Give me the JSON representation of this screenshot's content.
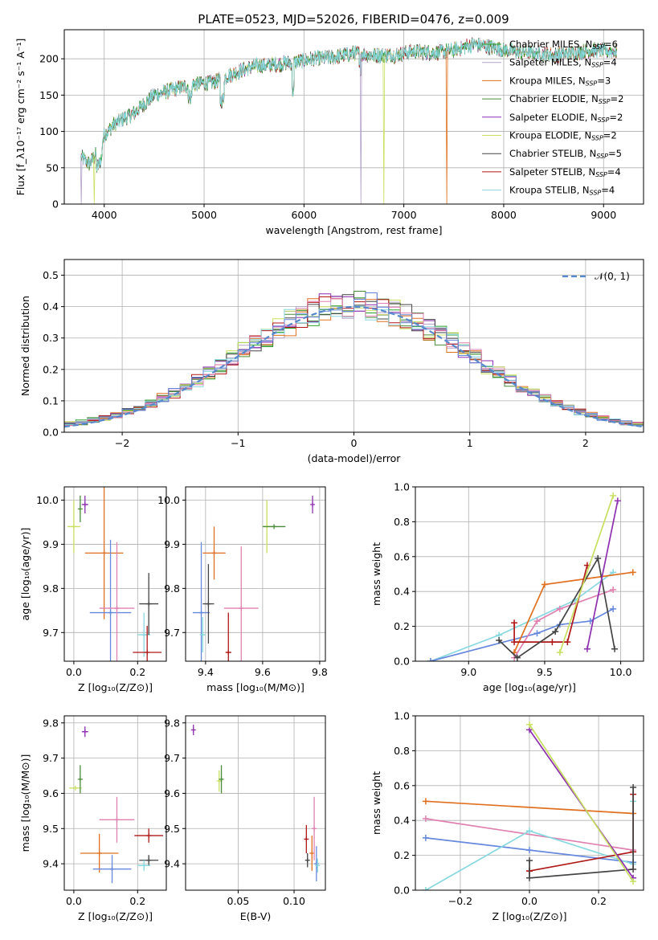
{
  "figure_title": "PLATE=0523, MJD=52026, FIBERID=0476, z=0.009",
  "colors": {
    "chabrier_miles": "#2ca02c",
    "salpeter_miles": "#b0a0c8",
    "kroupa_miles": "#e07020",
    "chabrier_elodie": "#4a8c3a",
    "salpeter_elodie": "#8e2fb0",
    "kroupa_elodie": "#c8e060",
    "chabrier_stelib": "#444444",
    "salpeter_stelib": "#b01818",
    "kroupa_stelib": "#88d8e0",
    "pink": "#e080b0",
    "blue": "#6688dd",
    "gauss": "#5588cc"
  },
  "chart_data": [
    {
      "id": "spectrum",
      "type": "line",
      "xlabel": "wavelength [Angstrom, rest frame]",
      "ylabel": "Flux [f_λ10⁻¹⁷ erg cm⁻² s⁻¹ A⁻¹]",
      "xlim": [
        3600,
        9400
      ],
      "ylim": [
        0,
        240
      ],
      "xticks": [
        4000,
        5000,
        6000,
        7000,
        8000,
        9000
      ],
      "yticks": [
        0,
        50,
        100,
        150,
        200
      ],
      "x_range_data": [
        3770,
        9130
      ],
      "continuum": {
        "x": [
          3770,
          3850,
          3950,
          4000,
          4100,
          4200,
          4300,
          4500,
          4700,
          4900,
          5100,
          5300,
          5500,
          5700,
          5900,
          6100,
          6300,
          6500,
          6700,
          6900,
          7100,
          7300,
          7500,
          7700,
          7900,
          8100,
          8300,
          8500,
          8700,
          8900,
          9130
        ],
        "y": [
          65,
          55,
          75,
          95,
          110,
          118,
          125,
          150,
          158,
          165,
          168,
          180,
          190,
          192,
          195,
          200,
          202,
          208,
          205,
          205,
          210,
          208,
          212,
          220,
          215,
          210,
          208,
          205,
          208,
          212,
          210
        ]
      },
      "legend_loc": "upper right",
      "legend": [
        {
          "label": "Chabrier MILES, N",
          "sub": "SSP",
          "eq": "=6",
          "color": "chabrier_miles"
        },
        {
          "label": "Salpeter MILES, N",
          "sub": "SSP",
          "eq": "=4",
          "color": "salpeter_miles"
        },
        {
          "label": "Kroupa MILES, N",
          "sub": "SSP",
          "eq": "=3",
          "color": "kroupa_miles"
        },
        {
          "label": "Chabrier ELODIE, N",
          "sub": "SSP",
          "eq": "=2",
          "color": "chabrier_elodie"
        },
        {
          "label": "Salpeter ELODIE, N",
          "sub": "SSP",
          "eq": "=2",
          "color": "salpeter_elodie"
        },
        {
          "label": "Kroupa ELODIE, N",
          "sub": "SSP",
          "eq": "=2",
          "color": "kroupa_elodie"
        },
        {
          "label": "Chabrier STELIB, N",
          "sub": "SSP",
          "eq": "=5",
          "color": "chabrier_stelib"
        },
        {
          "label": "Salpeter STELIB, N",
          "sub": "SSP",
          "eq": "=4",
          "color": "salpeter_stelib"
        },
        {
          "label": "Kroupa STELIB, N",
          "sub": "SSP",
          "eq": "=4",
          "color": "kroupa_stelib"
        }
      ]
    },
    {
      "id": "residuals",
      "type": "line",
      "xlabel": "(data-model)/error",
      "ylabel": "Normed distribution",
      "xlim": [
        -2.5,
        2.5
      ],
      "ylim": [
        0,
        0.55
      ],
      "xticks": [
        -2,
        -1,
        0,
        1,
        2
      ],
      "xtick_labels": [
        "−2",
        "−1",
        "0",
        "1",
        "2"
      ],
      "yticks": [
        0.0,
        0.1,
        0.2,
        0.3,
        0.4,
        0.5
      ],
      "ytick_labels": [
        "0.0",
        "0.1",
        "0.2",
        "0.3",
        "0.4",
        "0.5"
      ],
      "bin_width": 0.1,
      "legend": "𝒩(0, 1)",
      "series_colors": [
        "chabrier_miles",
        "salpeter_miles",
        "kroupa_miles",
        "chabrier_elodie",
        "salpeter_elodie",
        "kroupa_elodie",
        "chabrier_stelib",
        "salpeter_stelib",
        "kroupa_stelib",
        "pink",
        "blue"
      ]
    },
    {
      "id": "age_vs_Z",
      "type": "scatter",
      "xlabel": "Z [log₁₀(Z/Z⊙)]",
      "ylabel": "age  [log₁₀(age/yr)]",
      "xlim": [
        -0.03,
        0.29
      ],
      "ylim": [
        9.635,
        10.03
      ],
      "xticks": [
        0.0,
        0.2
      ],
      "xtick_labels": [
        "0.0",
        "0.2"
      ],
      "yticks": [
        9.7,
        9.8,
        9.9,
        10.0
      ],
      "ytick_labels": [
        "9.7",
        "9.8",
        "9.9",
        "10.0"
      ],
      "points": [
        {
          "x": 0.0,
          "y": 9.94,
          "xerr": 0.02,
          "yerr": 0.06,
          "color": "kroupa_elodie"
        },
        {
          "x": 0.02,
          "y": 9.98,
          "xerr": 0.0,
          "yerr": 0.03,
          "color": "chabrier_elodie"
        },
        {
          "x": 0.035,
          "y": 9.99,
          "xerr": 0.01,
          "yerr": 0.02,
          "color": "salpeter_elodie"
        },
        {
          "x": 0.095,
          "y": 9.88,
          "xerr": 0.06,
          "yerr": 0.15,
          "color": "kroupa_miles"
        },
        {
          "x": 0.115,
          "y": 9.745,
          "xerr": 0.065,
          "yerr": 0.165,
          "color": "blue"
        },
        {
          "x": 0.135,
          "y": 9.755,
          "xerr": 0.055,
          "yerr": 0.15,
          "color": "pink"
        },
        {
          "x": 0.22,
          "y": 9.695,
          "xerr": 0.02,
          "yerr": 0.05,
          "color": "kroupa_stelib"
        },
        {
          "x": 0.235,
          "y": 9.765,
          "xerr": 0.03,
          "yerr": 0.07,
          "color": "chabrier_stelib"
        },
        {
          "x": 0.23,
          "y": 9.655,
          "xerr": 0.045,
          "yerr": 0.06,
          "color": "salpeter_stelib"
        }
      ]
    },
    {
      "id": "age_vs_mass",
      "type": "scatter",
      "xlabel": "mass [log₁₀(M/M⊙)]",
      "ylabel": "",
      "xlim": [
        9.33,
        9.82
      ],
      "ylim": [
        9.635,
        10.03
      ],
      "xticks": [
        9.4,
        9.6,
        9.8
      ],
      "xtick_labels": [
        "9.4",
        "9.6",
        "9.8"
      ],
      "yticks": [
        9.7,
        9.8,
        9.9,
        10.0
      ],
      "ytick_labels": [
        "9.7",
        "9.8",
        "9.9",
        "10.0"
      ],
      "points": [
        {
          "x": 9.615,
          "y": 9.94,
          "xerr": 0.015,
          "yerr": 0.06,
          "color": "kroupa_elodie"
        },
        {
          "x": 9.64,
          "y": 9.94,
          "xerr": 0.04,
          "yerr": 0.0,
          "color": "chabrier_elodie"
        },
        {
          "x": 9.775,
          "y": 9.99,
          "xerr": 0.0,
          "yerr": 0.02,
          "color": "salpeter_elodie"
        },
        {
          "x": 9.43,
          "y": 9.88,
          "xerr": 0.04,
          "yerr": 0.06,
          "color": "kroupa_miles"
        },
        {
          "x": 9.385,
          "y": 9.745,
          "xerr": 0.03,
          "yerr": 0.16,
          "color": "blue"
        },
        {
          "x": 9.525,
          "y": 9.755,
          "xerr": 0.06,
          "yerr": 0.14,
          "color": "pink"
        },
        {
          "x": 9.39,
          "y": 9.695,
          "xerr": 0.01,
          "yerr": 0.04,
          "color": "kroupa_stelib"
        },
        {
          "x": 9.41,
          "y": 9.765,
          "xerr": 0.02,
          "yerr": 0.09,
          "color": "chabrier_stelib"
        },
        {
          "x": 9.48,
          "y": 9.655,
          "xerr": 0.01,
          "yerr": 0.09,
          "color": "salpeter_stelib"
        }
      ]
    },
    {
      "id": "mass_weight_vs_age",
      "type": "line",
      "xlabel": "age  [log₁₀(age/yr)]",
      "ylabel": "mass weight",
      "xlim": [
        8.65,
        10.15
      ],
      "ylim": [
        0,
        1
      ],
      "xticks": [
        9.0,
        9.5,
        10.0
      ],
      "xtick_labels": [
        "9.0",
        "9.5",
        "10.0"
      ],
      "yticks": [
        0.0,
        0.2,
        0.4,
        0.6,
        0.8,
        1.0
      ],
      "ytick_labels": [
        "0.0",
        "0.2",
        "0.4",
        "0.6",
        "0.8",
        "1.0"
      ],
      "series": [
        {
          "color": "kroupa_stelib",
          "x": [
            8.75,
            9.2,
            9.7,
            9.95
          ],
          "y": [
            0.0,
            0.15,
            0.35,
            0.51
          ]
        },
        {
          "color": "blue",
          "x": [
            8.75,
            9.45,
            9.6,
            9.8,
            9.95
          ],
          "y": [
            0.0,
            0.16,
            0.21,
            0.23,
            0.3
          ]
        },
        {
          "color": "kroupa_miles",
          "x": [
            9.3,
            9.5,
            10.08
          ],
          "y": [
            0.05,
            0.44,
            0.51
          ]
        },
        {
          "color": "pink",
          "x": [
            9.3,
            9.45,
            9.6,
            9.95
          ],
          "y": [
            0.02,
            0.23,
            0.3,
            0.41
          ]
        },
        {
          "color": "salpeter_stelib",
          "x": [
            9.3,
            9.3,
            9.55,
            9.65,
            9.78
          ],
          "y": [
            0.22,
            0.11,
            0.11,
            0.11,
            0.55
          ]
        },
        {
          "color": "chabrier_stelib",
          "x": [
            9.2,
            9.32,
            9.57,
            9.85,
            9.96
          ],
          "y": [
            0.12,
            0.02,
            0.17,
            0.59,
            0.07
          ]
        },
        {
          "color": "salpeter_elodie",
          "x": [
            9.78,
            9.98
          ],
          "y": [
            0.07,
            0.92
          ]
        },
        {
          "color": "kroupa_elodie",
          "x": [
            9.6,
            9.95
          ],
          "y": [
            0.05,
            0.95
          ]
        }
      ]
    },
    {
      "id": "mass_vs_Z",
      "type": "scatter",
      "xlabel": "Z [log₁₀(Z/Z⊙)]",
      "ylabel": "mass [log₁₀(M/M⊙)]",
      "xlim": [
        -0.03,
        0.29
      ],
      "ylim": [
        9.325,
        9.82
      ],
      "xticks": [
        0.0,
        0.2
      ],
      "xtick_labels": [
        "0.0",
        "0.2"
      ],
      "yticks": [
        9.4,
        9.5,
        9.6,
        9.7,
        9.8
      ],
      "ytick_labels": [
        "9.4",
        "9.5",
        "9.6",
        "9.7",
        "9.8"
      ],
      "points": [
        {
          "x": 0.035,
          "y": 9.775,
          "xerr": 0.01,
          "yerr": 0.015,
          "color": "salpeter_elodie"
        },
        {
          "x": 0.005,
          "y": 9.615,
          "xerr": 0.02,
          "yerr": 0.0,
          "color": "kroupa_elodie"
        },
        {
          "x": 0.02,
          "y": 9.64,
          "xerr": 0.0,
          "yerr": 0.04,
          "color": "chabrier_elodie"
        },
        {
          "x": 0.135,
          "y": 9.525,
          "xerr": 0.055,
          "yerr": 0.065,
          "color": "pink"
        },
        {
          "x": 0.08,
          "y": 9.43,
          "xerr": 0.06,
          "yerr": 0.055,
          "color": "kroupa_miles"
        },
        {
          "x": 0.12,
          "y": 9.385,
          "xerr": 0.06,
          "yerr": 0.04,
          "color": "blue"
        },
        {
          "x": 0.235,
          "y": 9.48,
          "xerr": 0.045,
          "yerr": 0.02,
          "color": "salpeter_stelib"
        },
        {
          "x": 0.235,
          "y": 9.41,
          "xerr": 0.03,
          "yerr": 0.015,
          "color": "chabrier_stelib"
        },
        {
          "x": 0.22,
          "y": 9.395,
          "xerr": 0.02,
          "yerr": 0.015,
          "color": "kroupa_stelib"
        }
      ]
    },
    {
      "id": "mass_vs_EBV",
      "type": "scatter",
      "xlabel": "E(B-V)",
      "ylabel": "",
      "xlim": [
        0.003,
        0.128
      ],
      "ylim": [
        9.325,
        9.82
      ],
      "xticks": [
        0.05,
        0.1
      ],
      "xtick_labels": [
        "0.05",
        "0.10"
      ],
      "yticks": [
        9.4,
        9.5,
        9.6,
        9.7,
        9.8
      ],
      "ytick_labels": [
        "9.4",
        "9.5",
        "9.6",
        "9.7",
        "9.8"
      ],
      "points": [
        {
          "x": 0.01,
          "y": 9.78,
          "xerr": 0.0,
          "yerr": 0.015,
          "color": "salpeter_elodie"
        },
        {
          "x": 0.033,
          "y": 9.635,
          "xerr": 0.0,
          "yerr": 0.03,
          "color": "kroupa_elodie"
        },
        {
          "x": 0.035,
          "y": 9.64,
          "xerr": 0.0,
          "yerr": 0.04,
          "color": "chabrier_elodie"
        },
        {
          "x": 0.111,
          "y": 9.47,
          "xerr": 0.0,
          "yerr": 0.04,
          "color": "salpeter_stelib"
        },
        {
          "x": 0.112,
          "y": 9.41,
          "xerr": 0.0,
          "yerr": 0.02,
          "color": "chabrier_stelib"
        },
        {
          "x": 0.116,
          "y": 9.43,
          "xerr": 0.0,
          "yerr": 0.05,
          "color": "kroupa_miles"
        },
        {
          "x": 0.118,
          "y": 9.5,
          "xerr": 0.0,
          "yerr": 0.09,
          "color": "pink"
        },
        {
          "x": 0.12,
          "y": 9.4,
          "xerr": 0.0,
          "yerr": 0.05,
          "color": "blue"
        },
        {
          "x": 0.121,
          "y": 9.395,
          "xerr": 0.0,
          "yerr": 0.02,
          "color": "kroupa_stelib"
        }
      ]
    },
    {
      "id": "mass_weight_vs_Z",
      "type": "line",
      "xlabel": "Z [log₁₀(Z/Z⊙)]",
      "ylabel": "mass weight",
      "xlim": [
        -0.33,
        0.33
      ],
      "ylim": [
        0,
        1
      ],
      "xticks": [
        -0.2,
        0.0,
        0.2
      ],
      "xtick_labels": [
        "−0.2",
        "0.0",
        "0.2"
      ],
      "yticks": [
        0.0,
        0.2,
        0.4,
        0.6,
        0.8,
        1.0
      ],
      "ytick_labels": [
        "0.0",
        "0.2",
        "0.4",
        "0.6",
        "0.8",
        "1.0"
      ],
      "series": [
        {
          "color": "kroupa_miles",
          "x": [
            -0.3,
            0.3
          ],
          "y": [
            0.51,
            0.44
          ]
        },
        {
          "color": "pink",
          "x": [
            -0.3,
            0.3
          ],
          "y": [
            0.41,
            0.23
          ]
        },
        {
          "color": "blue",
          "x": [
            -0.3,
            0.0,
            0.3
          ],
          "y": [
            0.3,
            0.23,
            0.16
          ]
        },
        {
          "color": "kroupa_stelib",
          "x": [
            -0.3,
            0.0,
            0.3,
            0.3
          ],
          "y": [
            0.0,
            0.34,
            0.15,
            0.51
          ]
        },
        {
          "color": "salpeter_stelib",
          "x": [
            0.0,
            0.0,
            0.3,
            0.3
          ],
          "y": [
            0.11,
            0.11,
            0.22,
            0.55
          ]
        },
        {
          "color": "chabrier_stelib",
          "x": [
            0.0,
            0.0,
            0.3,
            0.3
          ],
          "y": [
            0.17,
            0.07,
            0.12,
            0.59
          ]
        },
        {
          "color": "salpeter_elodie",
          "x": [
            0.0,
            0.3
          ],
          "y": [
            0.92,
            0.07
          ]
        },
        {
          "color": "kroupa_elodie",
          "x": [
            0.0,
            0.3
          ],
          "y": [
            0.95,
            0.05
          ]
        }
      ]
    }
  ]
}
